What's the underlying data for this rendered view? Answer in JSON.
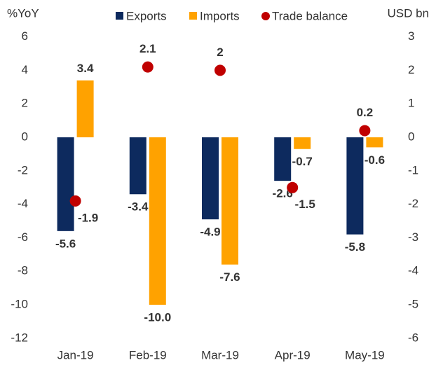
{
  "chart_data": {
    "type": "bar-dot",
    "y_label": "%YoY",
    "y2_label": "USD bn",
    "categories": [
      "Jan-19",
      "Feb-19",
      "Mar-19",
      "Apr-19",
      "May-19"
    ],
    "series": [
      {
        "name": "Exports",
        "color": "#0d2a5e",
        "label_color": "#0d2a5e",
        "values": [
          -5.6,
          -3.4,
          -4.9,
          -2.6,
          -5.8
        ]
      },
      {
        "name": "Imports",
        "color": "#ffa200",
        "label_color": "#f0912a",
        "values": [
          3.4,
          -10.0,
          -7.6,
          -0.7,
          -0.6
        ],
        "value_labels": [
          "3.4",
          "-10.0",
          "-7.6",
          "-0.7",
          "-0.6"
        ]
      },
      {
        "name": "Trade balance",
        "color": "#c00000",
        "label_color": "#c00000",
        "axis": "y2",
        "values": [
          -1.9,
          2.1,
          2.0,
          -1.5,
          0.2
        ]
      }
    ],
    "ylim": [
      -12,
      6
    ],
    "yticks": [
      -12,
      -10,
      -8,
      -6,
      -4,
      -2,
      0,
      2,
      4,
      6
    ],
    "y2lim": [
      -6,
      3
    ],
    "y2ticks": [
      -6,
      -5,
      -4,
      -3,
      -2,
      -1,
      0,
      1,
      2,
      3
    ]
  }
}
